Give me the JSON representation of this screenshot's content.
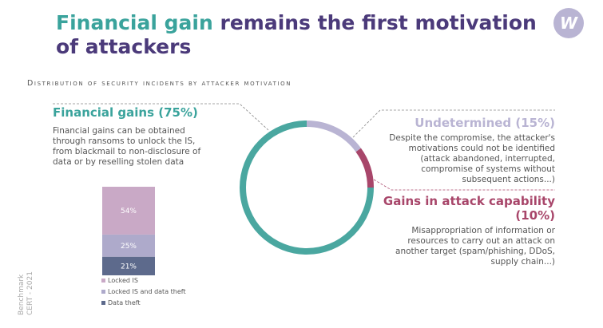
{
  "title": {
    "highlight": "Financial gain",
    "rest": " remains the first motivation of attackers"
  },
  "subtitle": "Distribution of security incidents by attacker motivation",
  "logo": {
    "letter": "W",
    "color": "#b9b4d3"
  },
  "financial": {
    "heading": "Financial gains (75%)",
    "text": "Financial gains can be obtained through ransoms to unlock the IS, from blackmail to non-disclosure of data or by reselling stolen data"
  },
  "undetermined": {
    "heading": "Undetermined (15%)",
    "text": "Despite the compromise, the attacker's motivations could not be identified (attack abandoned, interrupted, compromise of systems without subsequent actions...)"
  },
  "capability": {
    "heading": "Gains in attack capability (10%)",
    "text": "Misappropriation of information or resources to carry out an attack on another target (spam/phishing, DDoS, supply chain...)"
  },
  "source": {
    "line1": "Benchmark",
    "line2": "CERT - 2021"
  },
  "chart_data": [
    {
      "type": "pie",
      "style": "donut",
      "categories": [
        "Undetermined",
        "Gains in attack capability",
        "Financial gains"
      ],
      "values": [
        15,
        10,
        75
      ],
      "colors": [
        "#b9b4d3",
        "#a8466a",
        "#4aa7a0"
      ]
    },
    {
      "type": "bar",
      "stacked": true,
      "series": [
        {
          "name": "Locked IS",
          "values": [
            54
          ],
          "label": "54%",
          "color": "#c9a9c6"
        },
        {
          "name": "Locked IS and data theft",
          "values": [
            25
          ],
          "label": "25%",
          "color": "#aeaacb"
        },
        {
          "name": "Data theft",
          "values": [
            21
          ],
          "label": "21%",
          "color": "#5d6a8c"
        }
      ],
      "legend": "bottom"
    }
  ]
}
